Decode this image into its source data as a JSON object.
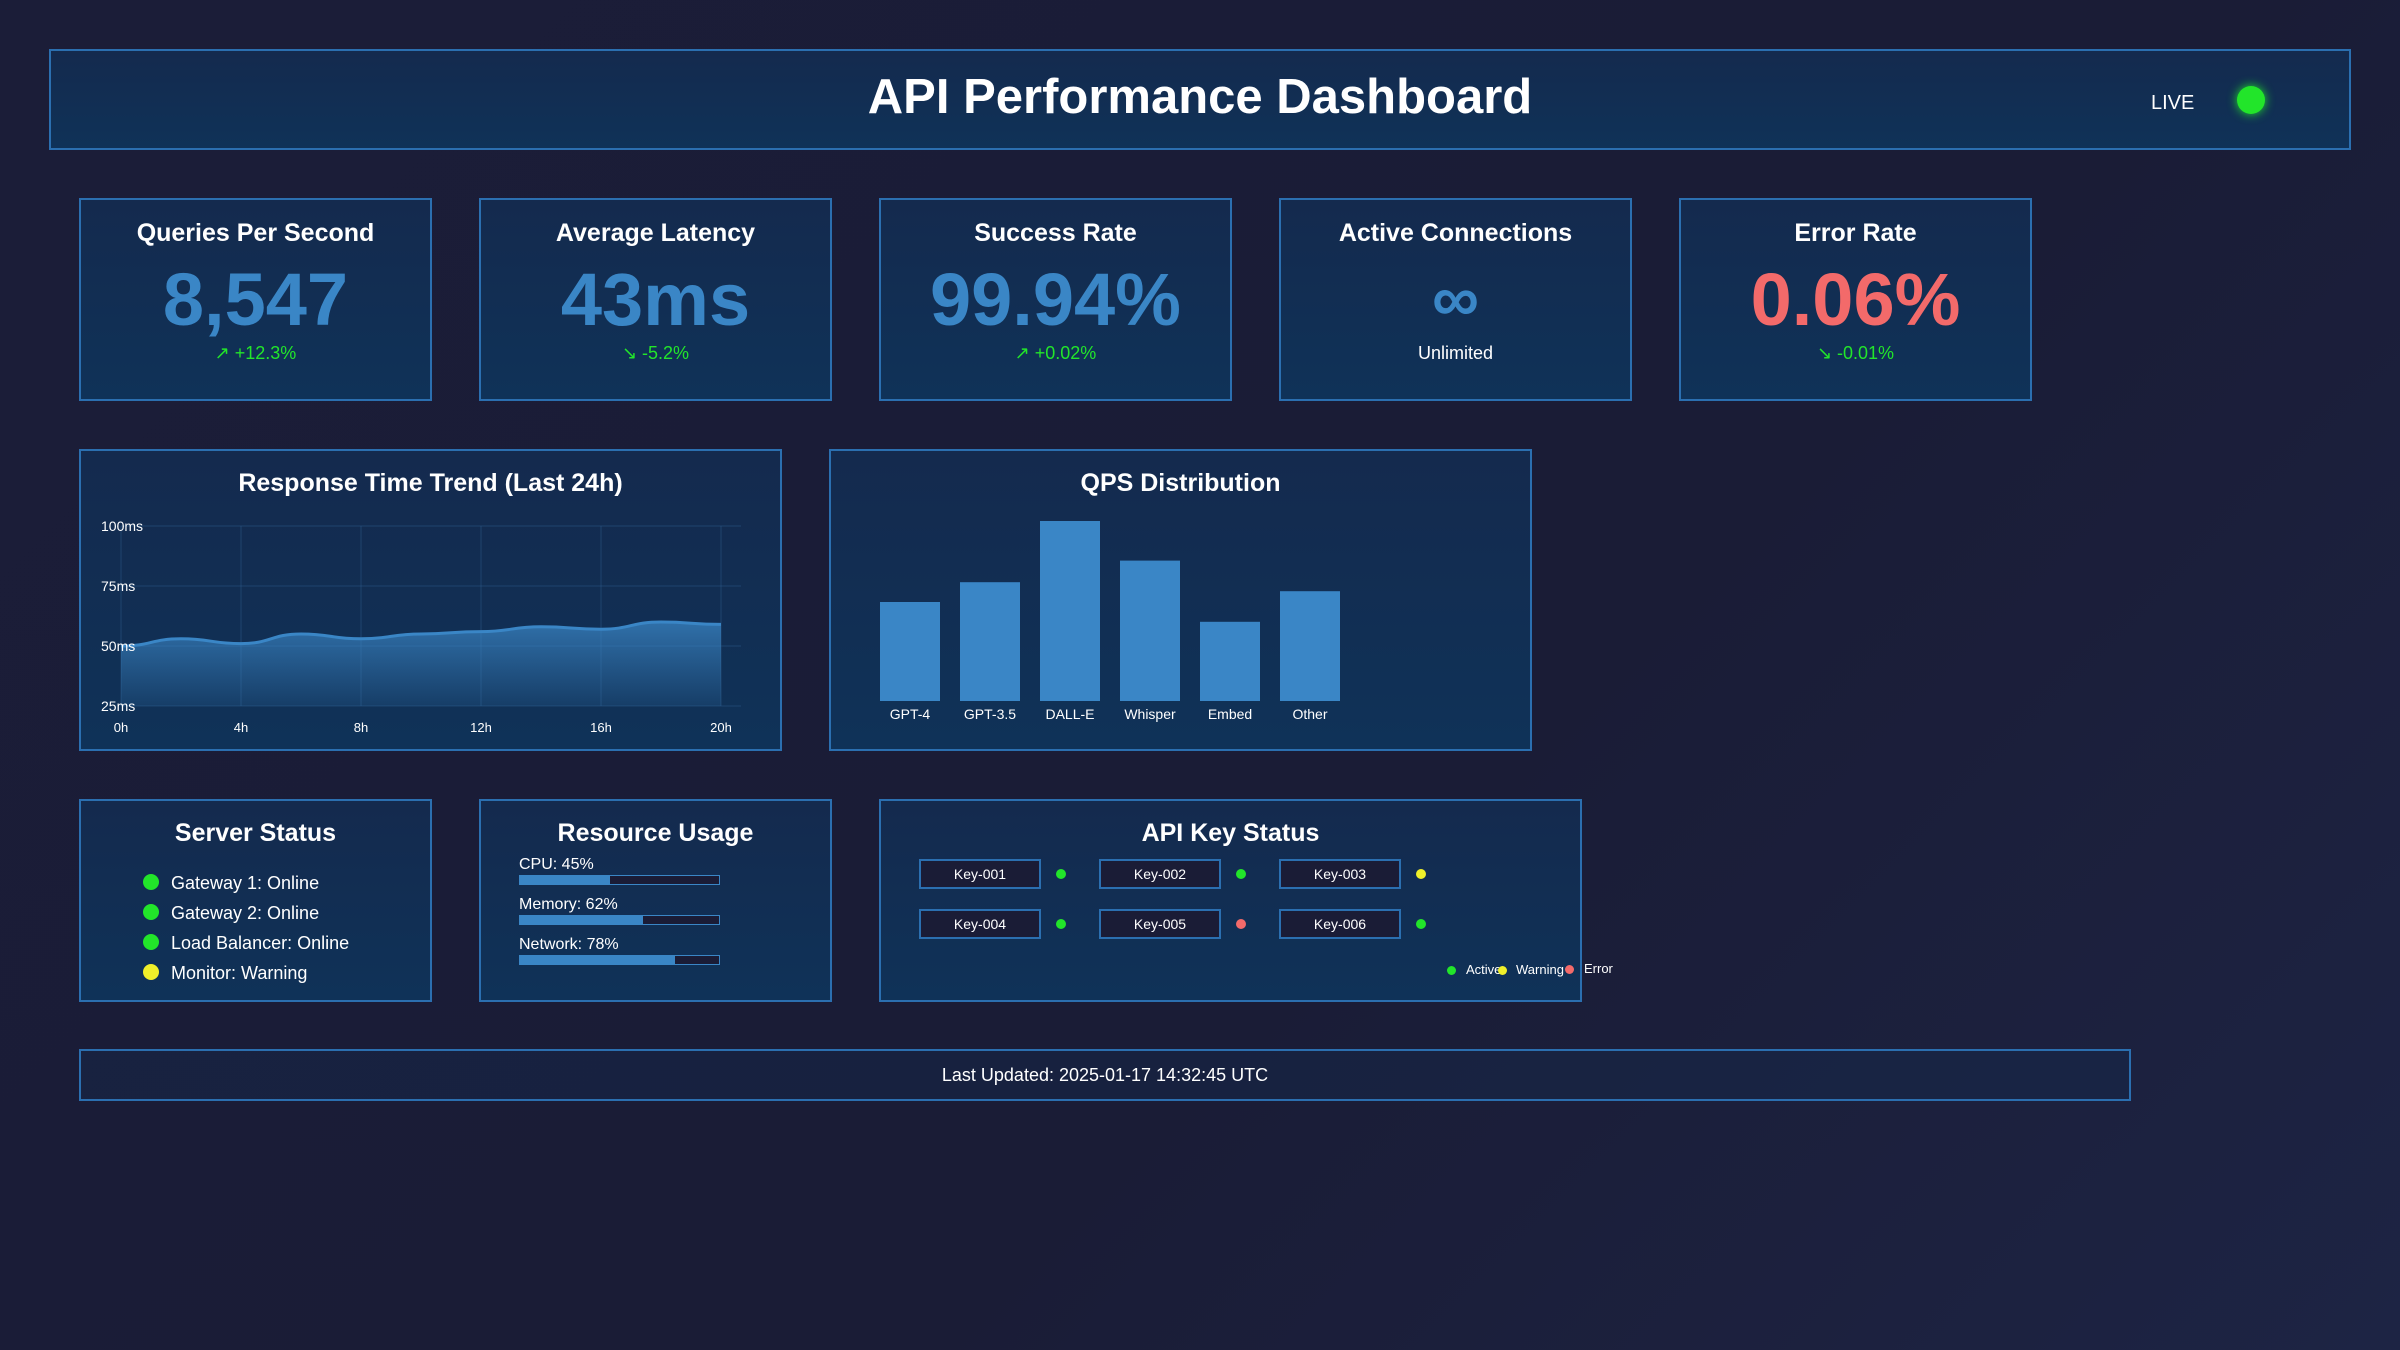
{
  "header": {
    "title": "API Performance Dashboard",
    "live_label": "LIVE"
  },
  "metrics": [
    {
      "title": "Queries Per Second",
      "value": "8,547",
      "change": "↗ +12.3%"
    },
    {
      "title": "Average Latency",
      "value": "43ms",
      "change": "↘ -5.2%"
    },
    {
      "title": "Success Rate",
      "value": "99.94%",
      "change": "↗ +0.02%"
    },
    {
      "title": "Active Connections",
      "value": "∞",
      "change": "Unlimited"
    },
    {
      "title": "Error Rate",
      "value": "0.06%",
      "change": "↘ -0.01%"
    }
  ],
  "response_chart": {
    "title": "Response Time Trend (Last 24h)",
    "ytick_labels": [
      "100ms",
      "75ms",
      "50ms",
      "25ms"
    ],
    "xtick_labels": [
      "0h",
      "4h",
      "8h",
      "12h",
      "16h",
      "20h"
    ]
  },
  "qps_chart": {
    "title": "QPS Distribution",
    "categories": [
      "GPT-4",
      "GPT-3.5",
      "DALL-E",
      "Whisper",
      "Embed",
      "Other"
    ]
  },
  "chart_data": [
    {
      "type": "area",
      "title": "Response Time Trend (Last 24h)",
      "x": [
        0,
        2,
        4,
        6,
        8,
        10,
        12,
        14,
        16,
        18,
        20
      ],
      "values": [
        50,
        53,
        51,
        55,
        53,
        55,
        56,
        58,
        57,
        60,
        59
      ],
      "ylim": [
        25,
        100
      ],
      "xlim": [
        0,
        20
      ],
      "grid": true
    },
    {
      "type": "bar",
      "title": "QPS Distribution",
      "categories": [
        "GPT-4",
        "GPT-3.5",
        "DALL-E",
        "Whisper",
        "Embed",
        "Other"
      ],
      "values": [
        55,
        66,
        100,
        78,
        44,
        61
      ]
    }
  ],
  "server_status": {
    "title": "Server Status",
    "items": [
      {
        "label": "Gateway 1: Online",
        "color": "#22e52a"
      },
      {
        "label": "Gateway 2: Online",
        "color": "#22e52a"
      },
      {
        "label": "Load Balancer: Online",
        "color": "#22e52a"
      },
      {
        "label": "Monitor: Warning",
        "color": "#f0f02a"
      }
    ]
  },
  "resource_usage": {
    "title": "Resource Usage",
    "items": [
      {
        "label": "CPU: 45%",
        "percent": 45
      },
      {
        "label": "Memory: 62%",
        "percent": 62
      },
      {
        "label": "Network: 78%",
        "percent": 78
      }
    ]
  },
  "api_keys": {
    "title": "API Key Status",
    "keys": [
      {
        "label": "Key-001",
        "color": "#22e52a"
      },
      {
        "label": "Key-002",
        "color": "#22e52a"
      },
      {
        "label": "Key-003",
        "color": "#f0f02a"
      },
      {
        "label": "Key-004",
        "color": "#22e52a"
      },
      {
        "label": "Key-005",
        "color": "#f36a6a"
      },
      {
        "label": "Key-006",
        "color": "#22e52a"
      }
    ],
    "legend": [
      {
        "label": "Active",
        "color": "#22e52a"
      },
      {
        "label": "Warning",
        "color": "#f0f02a"
      },
      {
        "label": "Error",
        "color": "#f36a6a"
      }
    ]
  },
  "footer": {
    "text": "Last Updated: 2025-01-17 14:32:45 UTC"
  }
}
